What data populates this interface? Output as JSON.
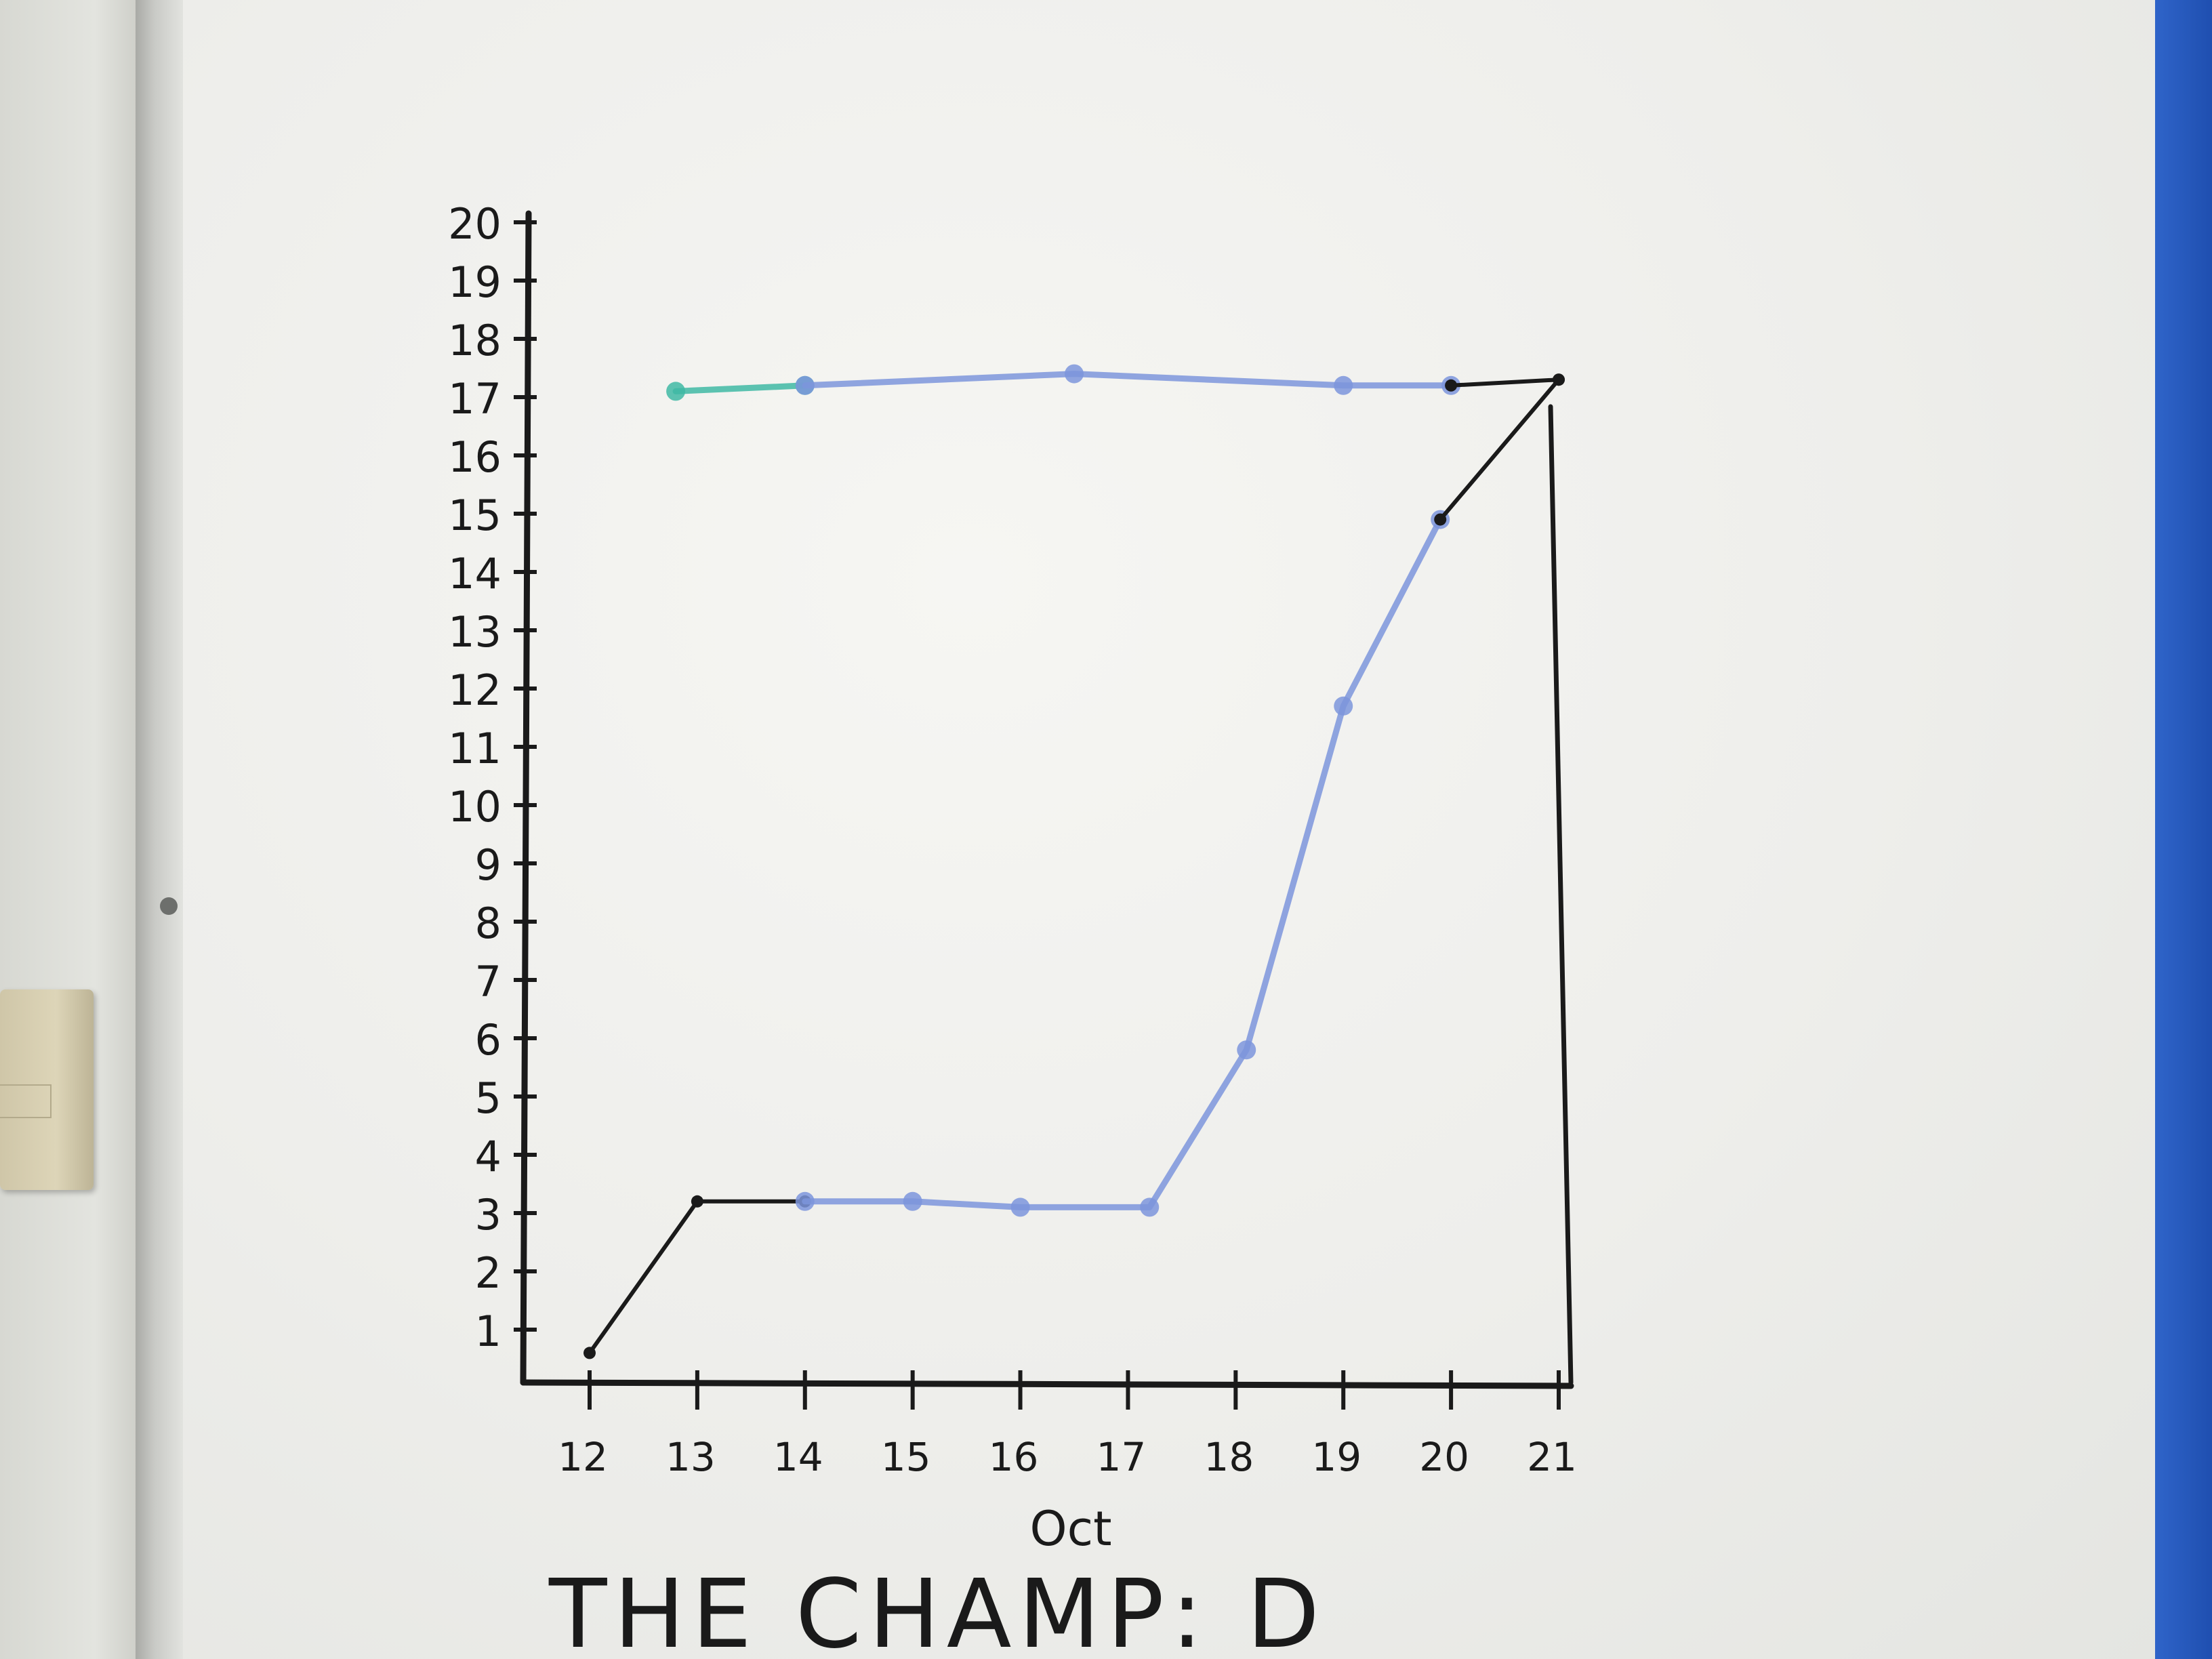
{
  "chart_data": {
    "type": "line",
    "xlabel": "Oct",
    "ylabel": "",
    "xlim": [
      12,
      21
    ],
    "ylim": [
      0,
      20
    ],
    "x_ticks": [
      12,
      13,
      14,
      15,
      16,
      17,
      18,
      19,
      20,
      21
    ],
    "y_ticks": [
      1,
      2,
      3,
      4,
      5,
      6,
      7,
      8,
      9,
      10,
      11,
      12,
      13,
      14,
      15,
      16,
      17,
      18,
      19,
      20
    ],
    "grid": false,
    "series": [
      {
        "color": "#1a1a1a",
        "style": "solid",
        "points": [
          [
            12,
            0.6
          ],
          [
            13,
            3.2
          ],
          [
            14,
            3.2
          ]
        ]
      },
      {
        "color": "#7d95dc",
        "style": "solid",
        "points": [
          [
            14,
            3.2
          ],
          [
            15,
            3.2
          ],
          [
            16,
            3.1
          ],
          [
            17.2,
            3.1
          ],
          [
            18.1,
            5.8
          ],
          [
            19,
            11.7
          ],
          [
            19.9,
            14.9
          ]
        ]
      },
      {
        "color": "#1a1a1a",
        "style": "solid",
        "points": [
          [
            19.9,
            14.9
          ],
          [
            21,
            17.3
          ]
        ]
      },
      {
        "color": "#3fb8a4",
        "style": "solid",
        "points": [
          [
            12.8,
            17.1
          ],
          [
            14,
            17.2
          ]
        ]
      },
      {
        "color": "#7d95dc",
        "style": "solid",
        "points": [
          [
            14,
            17.2
          ],
          [
            16.5,
            17.4
          ],
          [
            19,
            17.2
          ],
          [
            20,
            17.2
          ]
        ]
      },
      {
        "color": "#1a1a1a",
        "style": "solid",
        "points": [
          [
            20,
            17.2
          ],
          [
            21,
            17.3
          ]
        ]
      }
    ],
    "title": "THE CHAMP: D"
  },
  "colors": {
    "ink": "#1a1a1a",
    "blue_marker": "#7d95dc",
    "teal_marker": "#3fb8a4",
    "board": "#f1f1ee"
  }
}
